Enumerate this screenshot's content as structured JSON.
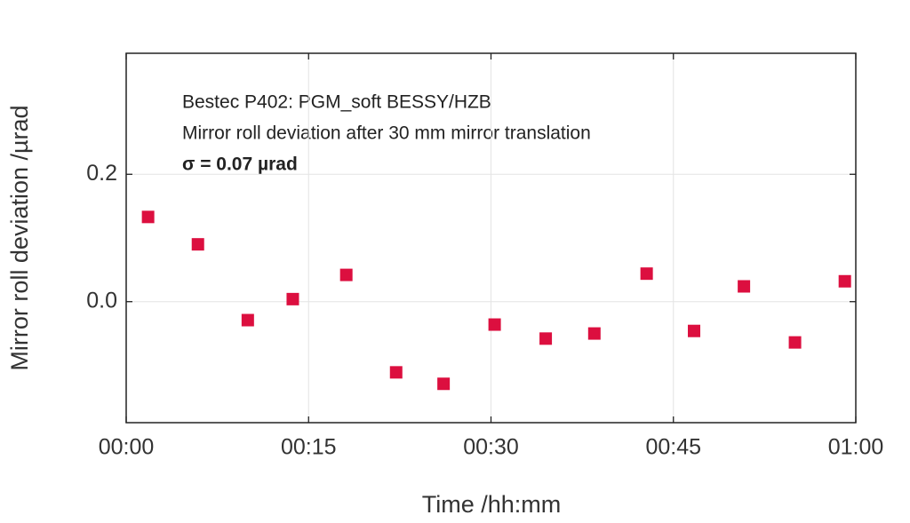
{
  "chart_data": {
    "type": "line",
    "annotations": [
      "Bestec P402: PGM_soft BESSY/HZB",
      "Mirror roll deviation after 30 mm mirror translation",
      "σ  = 0.07 µrad"
    ],
    "x_label": "Time /hh:mm",
    "y_label": "Mirror roll deviation /µrad",
    "x": [
      1.8,
      5.9,
      10.0,
      13.7,
      18.1,
      22.2,
      26.1,
      30.3,
      34.5,
      38.5,
      42.8,
      46.7,
      50.8,
      55.0,
      59.1
    ],
    "values": [
      0.133,
      0.09,
      -0.029,
      0.004,
      0.042,
      -0.111,
      -0.129,
      -0.036,
      -0.058,
      -0.05,
      0.044,
      -0.046,
      0.024,
      -0.064,
      0.032
    ],
    "color": "#dc0f3f",
    "xlim": [
      0,
      60
    ],
    "xticks": [
      {
        "value": 0,
        "label": "00:00"
      },
      {
        "value": 15,
        "label": "00:15"
      },
      {
        "value": 30,
        "label": "00:30"
      },
      {
        "value": 45,
        "label": "00:45"
      },
      {
        "value": 60,
        "label": "01:00"
      }
    ],
    "ylim": [
      -0.19,
      0.39
    ],
    "yticks": [
      {
        "value": 0,
        "label": "0.0"
      },
      0.2
    ],
    "grid": true
  }
}
